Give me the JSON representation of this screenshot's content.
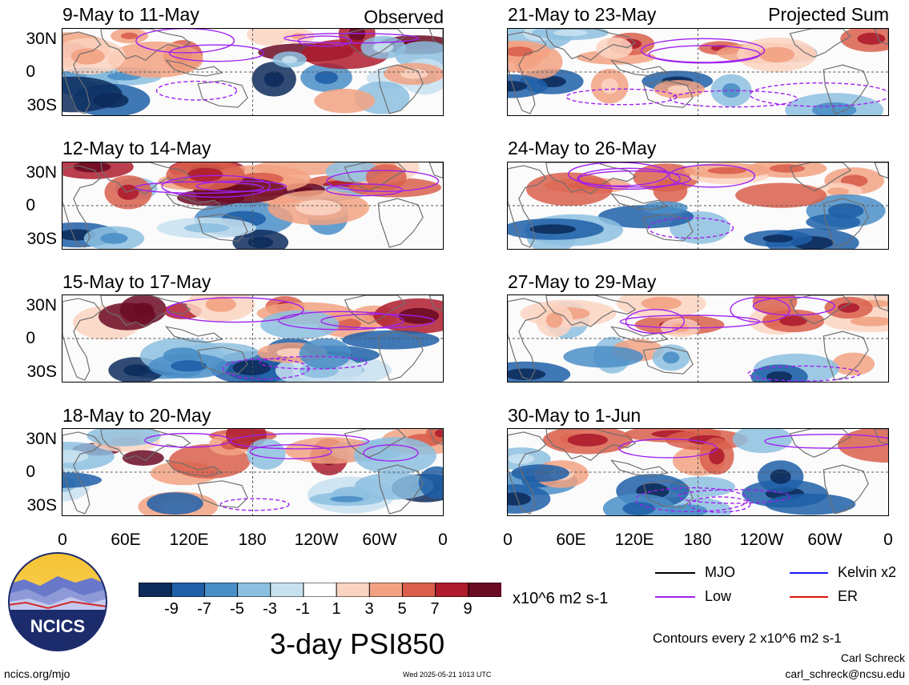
{
  "observed_label": "Observed",
  "projected_label": "Projected Sum",
  "panels_left": [
    {
      "title": "9-May to 11-May"
    },
    {
      "title": "12-May to 14-May"
    },
    {
      "title": "15-May to 17-May"
    },
    {
      "title": "18-May to 20-May"
    }
  ],
  "panels_right": [
    {
      "title": "21-May to 23-May"
    },
    {
      "title": "24-May to 26-May"
    },
    {
      "title": "27-May to 29-May"
    },
    {
      "title": "30-May to 1-Jun"
    }
  ],
  "lat_labels": [
    "30N",
    "0",
    "30S"
  ],
  "lon_labels": [
    "0",
    "60E",
    "120E",
    "180",
    "120W",
    "60W",
    "0"
  ],
  "colorbar": {
    "ticks": [
      "-9",
      "-7",
      "-5",
      "-3",
      "-1",
      "1",
      "3",
      "5",
      "7",
      "9"
    ],
    "units": "x10^6 m2 s-1",
    "colors": [
      "#0d2c5c",
      "#1f5fa8",
      "#4a8ec7",
      "#8dbfe0",
      "#c8e1f0",
      "#ffffff",
      "#fbd3c1",
      "#f2a283",
      "#d95f4c",
      "#ae1c2e",
      "#6b0a24"
    ]
  },
  "legend": {
    "mjo": "MJO",
    "kelvin": "Kelvin x2",
    "low": "Low",
    "er": "ER",
    "colors": {
      "mjo": "#000000",
      "kelvin": "#1a1aff",
      "low": "#a020f0",
      "er": "#e01010"
    }
  },
  "main_title": "3-day PSI850",
  "contour_note": "Contours every 2 x10^6 m2 s-1",
  "author": "Carl Schreck",
  "email": "carl_schreck@ncsu.edu",
  "site": "ncics.org/mjo",
  "timestamp": "Wed 2025-05-21 1013 UTC",
  "logo_text": "NCICS"
}
